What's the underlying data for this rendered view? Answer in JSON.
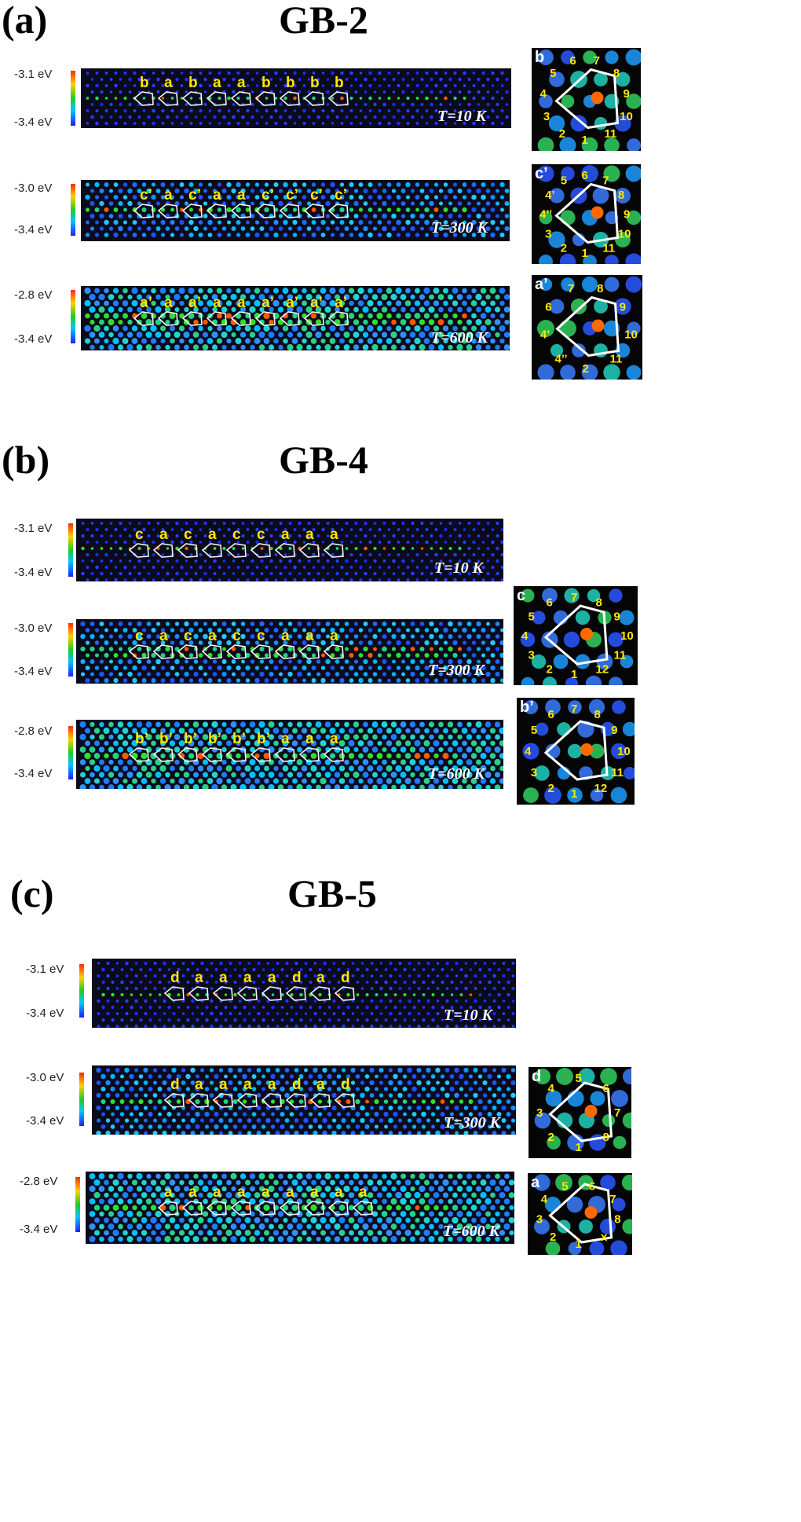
{
  "panels": [
    {
      "label": "(a)",
      "title": "GB-2",
      "rows": [
        {
          "cb_top": "-3.1 eV",
          "cb_bottom": "-3.4 eV",
          "temp": "T=10 K",
          "tags": [
            "b",
            "a",
            "b",
            "a",
            "a",
            "b",
            "b",
            "b",
            "b"
          ]
        },
        {
          "cb_top": "-3.0 eV",
          "cb_bottom": "-3.4 eV",
          "temp": "T=300 K",
          "tags": [
            "c’",
            "a",
            "c’",
            "a",
            "a",
            "c’",
            "c’",
            "c’",
            "c’"
          ]
        },
        {
          "cb_top": "-2.8 eV",
          "cb_bottom": "-3.4 eV",
          "temp": "T=600 K",
          "tags": [
            "a’",
            "a",
            "a’",
            "a",
            "a",
            "a’",
            "a’",
            "a’",
            "a’"
          ]
        }
      ],
      "insets": [
        {
          "tag": "b",
          "numbers": [
            "1",
            "2",
            "3",
            "4",
            "5",
            "6",
            "7",
            "8",
            "9",
            "10",
            "11"
          ]
        },
        {
          "tag": "c’",
          "numbers": [
            "1",
            "2",
            "3",
            "4’’",
            "4’",
            "5",
            "6",
            "7",
            "8",
            "9",
            "10",
            "11"
          ]
        },
        {
          "tag": "a’",
          "numbers": [
            "2",
            "4’’",
            "4’",
            "6",
            "7",
            "8",
            "9",
            "10",
            "11"
          ]
        }
      ]
    },
    {
      "label": "(b)",
      "title": "GB-4",
      "rows": [
        {
          "cb_top": "-3.1 eV",
          "cb_bottom": "-3.4 eV",
          "temp": "T=10 K",
          "tags": [
            "c",
            "a",
            "c",
            "a",
            "c",
            "c",
            "a",
            "a",
            "a"
          ]
        },
        {
          "cb_top": "-3.0 eV",
          "cb_bottom": "-3.4 eV",
          "temp": "T=300 K",
          "tags": [
            "c",
            "a",
            "c",
            "a",
            "c",
            "c",
            "a",
            "a",
            "a"
          ]
        },
        {
          "cb_top": "-2.8 eV",
          "cb_bottom": "-3.4 eV",
          "temp": "T=600 K",
          "tags": [
            "b’",
            "b’",
            "b’",
            "b’",
            "b’",
            "b’",
            "a",
            "a",
            "a"
          ]
        }
      ],
      "insets": [
        {
          "tag": "c",
          "numbers": [
            "1",
            "2",
            "3",
            "4",
            "5",
            "6",
            "7",
            "8",
            "9",
            "10",
            "11",
            "12"
          ]
        },
        {
          "tag": "b’",
          "numbers": [
            "1",
            "2",
            "3",
            "4",
            "5",
            "6",
            "7",
            "8",
            "9",
            "10",
            "11",
            "12"
          ]
        }
      ]
    },
    {
      "label": "(c)",
      "title": "GB-5",
      "rows": [
        {
          "cb_top": "-3.1 eV",
          "cb_bottom": "-3.4 eV",
          "temp": "T=10 K",
          "tags": [
            "d",
            "a",
            "a",
            "a",
            "a",
            "d",
            "a",
            "d"
          ]
        },
        {
          "cb_top": "-3.0 eV",
          "cb_bottom": "-3.4 eV",
          "temp": "T=300 K",
          "tags": [
            "d",
            "a",
            "a",
            "a",
            "a",
            "d",
            "a",
            "d"
          ]
        },
        {
          "cb_top": "-2.8 eV",
          "cb_bottom": "-3.4 eV",
          "temp": "T=600 K",
          "tags": [
            "a",
            "a",
            "a",
            "a",
            "a",
            "a",
            "a",
            "a",
            "a"
          ]
        }
      ],
      "insets": [
        {
          "tag": "d",
          "numbers": [
            "1",
            "2",
            "3",
            "4",
            "5",
            "6",
            "7",
            "8"
          ]
        },
        {
          "tag": "a",
          "numbers": [
            "1",
            "2",
            "3",
            "4",
            "5",
            "6",
            "7",
            "8",
            "x"
          ]
        }
      ]
    }
  ]
}
